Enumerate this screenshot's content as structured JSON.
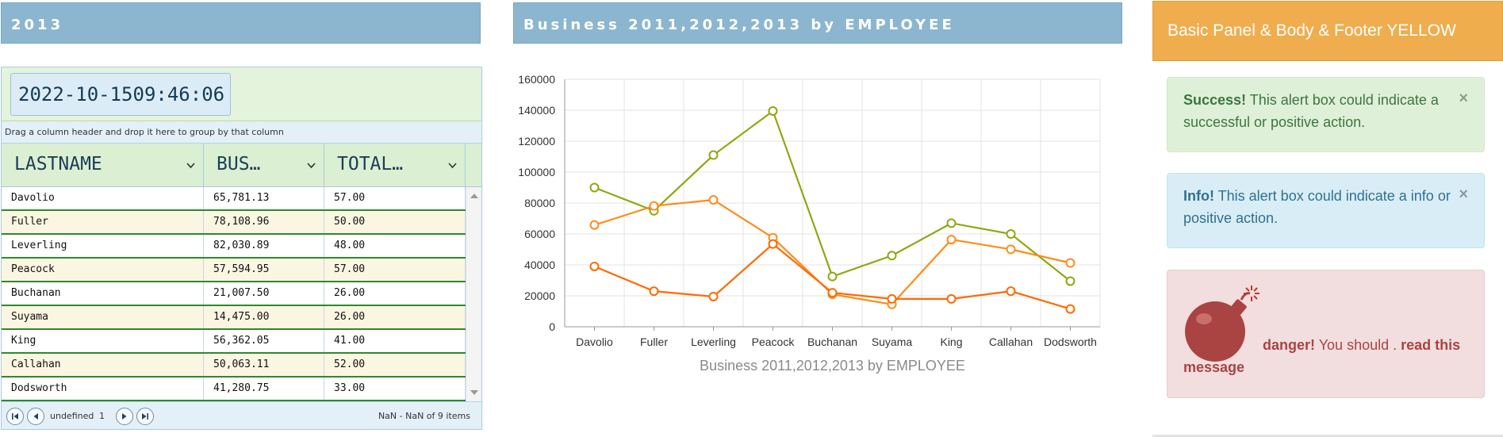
{
  "left_panel": {
    "title": "2013"
  },
  "middle_panel": {
    "title": "Business 2011,2012,2013 by EMPLOYEE"
  },
  "grid": {
    "clock": "2022-10-1509:46:06",
    "group_hint": "Drag a column header and drop it here to group by that column",
    "columns": [
      "LASTNAME",
      "BUS…",
      "TOTAL…"
    ],
    "rows": [
      [
        "Davolio",
        "65,781.13",
        "57.00"
      ],
      [
        "Fuller",
        "78,108.96",
        "50.00"
      ],
      [
        "Leverling",
        "82,030.89",
        "48.00"
      ],
      [
        "Peacock",
        "57,594.95",
        "57.00"
      ],
      [
        "Buchanan",
        "21,007.50",
        "26.00"
      ],
      [
        "Suyama",
        "14,475.00",
        "26.00"
      ],
      [
        "King",
        "56,362.05",
        "41.00"
      ],
      [
        "Callahan",
        "50,063.11",
        "52.00"
      ],
      [
        "Dodsworth",
        "41,280.75",
        "33.00"
      ]
    ],
    "pager": {
      "page_label": "undefined",
      "page_number": "1",
      "info": "NaN - NaN of 9 items"
    }
  },
  "chart_data": {
    "type": "line",
    "title": "Business 2011,2012,2013 by EMPLOYEE",
    "categories": [
      "Davolio",
      "Fuller",
      "Leverling",
      "Peacock",
      "Buchanan",
      "Suyama",
      "King",
      "Callahan",
      "Dodsworth"
    ],
    "ylim": [
      0,
      160000
    ],
    "yticks": [
      "0",
      "20000",
      "40000",
      "60000",
      "80000",
      "100000",
      "120000",
      "140000",
      "160000"
    ],
    "grid": true,
    "series": [
      {
        "color": "#8ea80f",
        "values": [
          90000,
          75000,
          111000,
          139500,
          32500,
          46000,
          67000,
          60000,
          29500
        ]
      },
      {
        "color": "#ff8c1a",
        "values": [
          65781,
          78109,
          82031,
          57595,
          21008,
          14475,
          56362,
          50063,
          41281
        ]
      },
      {
        "color": "#ff6a00",
        "values": [
          39000,
          23000,
          19500,
          53500,
          22000,
          18000,
          18000,
          23000,
          11500
        ]
      }
    ]
  },
  "right_panel": {
    "title": "Basic Panel & Body & Footer YELLOW",
    "success": {
      "strong": "Success!",
      "text": " This alert box could indicate a successful or positive action."
    },
    "info": {
      "strong": "Info!",
      "text": " This alert box could indicate a info or positive action."
    },
    "danger": {
      "strong": "danger!",
      "text": " You should . ",
      "strong2": "read this message"
    },
    "close_glyph": "×"
  }
}
